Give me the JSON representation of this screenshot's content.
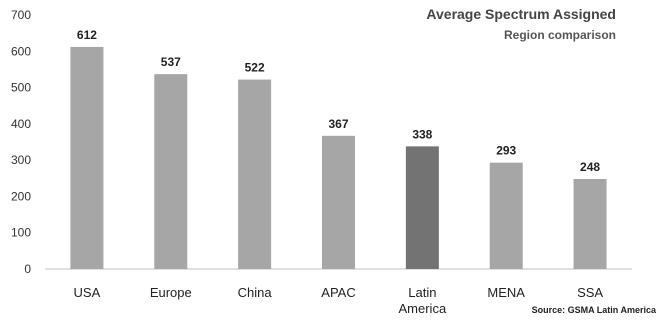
{
  "chart_data": {
    "type": "bar",
    "title": "Average Spectrum Assigned",
    "subtitle": "Region comparison",
    "source": "Source: GSMA Latin America",
    "categories": [
      "USA",
      "Europe",
      "China",
      "APAC",
      "Latin America",
      "MENA",
      "SSA"
    ],
    "category_lines": [
      [
        "USA"
      ],
      [
        "Europe"
      ],
      [
        "China"
      ],
      [
        "APAC"
      ],
      [
        "Latin",
        "America"
      ],
      [
        "MENA"
      ],
      [
        "SSA"
      ]
    ],
    "values": [
      612,
      537,
      522,
      367,
      338,
      293,
      248
    ],
    "data_labels": [
      "612",
      "537",
      "522",
      "367",
      "338",
      "293",
      "248"
    ],
    "ylim": [
      0,
      700
    ],
    "yticks": [
      0,
      100,
      200,
      300,
      400,
      500,
      600,
      700
    ],
    "xlabel": "",
    "ylabel": "",
    "grid": false,
    "legend": "none",
    "colors": {
      "bar": "#a6a6a6",
      "highlight_bar": "#737373",
      "highlight_category": "Latin America",
      "axis": "#bfbfbf",
      "text": "#333333"
    }
  }
}
